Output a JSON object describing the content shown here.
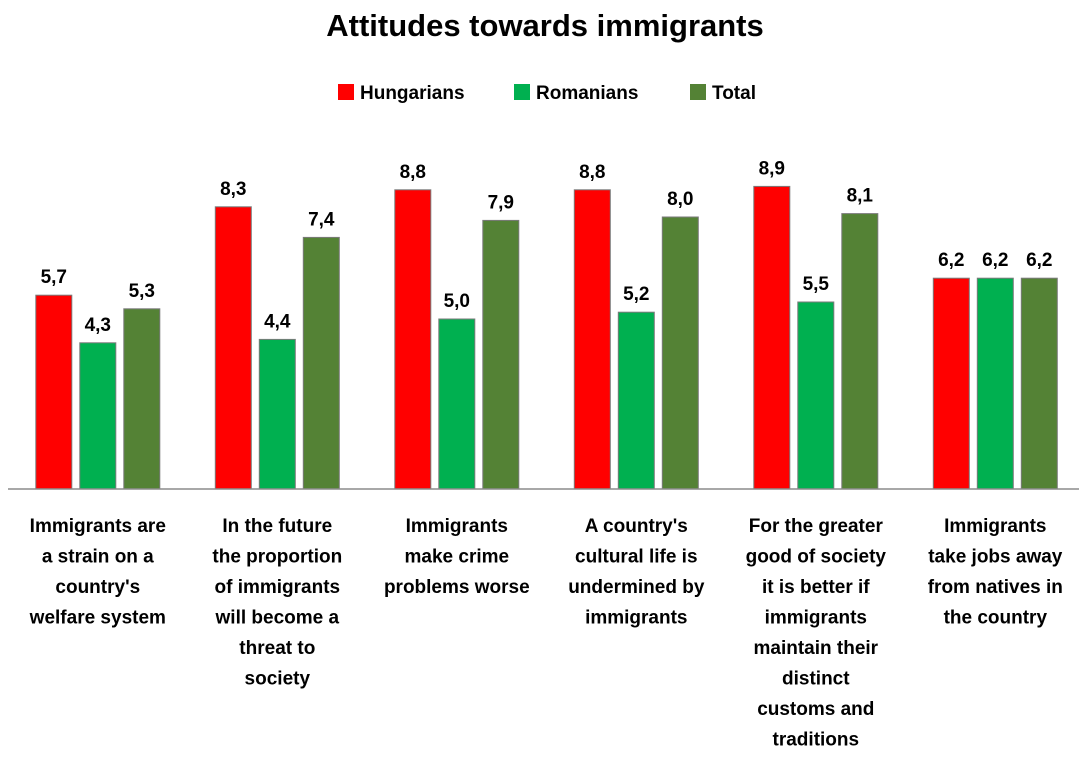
{
  "chart_data": {
    "type": "bar",
    "title": "Attitudes towards immigrants",
    "categories": [
      "Immigrants are a strain on a country's welfare system",
      "In the future the proportion of immigrants will become a threat to society",
      "Immigrants make crime problems worse",
      "A country's cultural life is undermined by immigrants",
      "For the greater good of society it is better if immigrants maintain their distinct customs and traditions",
      "Immigrants take jobs away from natives in the country"
    ],
    "category_lines": [
      [
        "Immigrants are",
        "a strain on a",
        "country's",
        "welfare system"
      ],
      [
        "In the future",
        "the proportion",
        "of immigrants",
        "will become a",
        "threat to",
        "society"
      ],
      [
        "Immigrants",
        "make crime",
        "problems worse"
      ],
      [
        "A country's",
        "cultural life is",
        "undermined by",
        "immigrants"
      ],
      [
        "For the greater",
        "good of society",
        "it is better if",
        "immigrants",
        "maintain their",
        "distinct",
        "customs and",
        "traditions"
      ],
      [
        "Immigrants",
        "take jobs away",
        "from natives in",
        "the country"
      ]
    ],
    "series": [
      {
        "name": "Hungarians",
        "color": "#ff0000",
        "values": [
          5.7,
          8.3,
          8.8,
          8.8,
          8.9,
          6.2
        ],
        "labels": [
          "5,7",
          "8,3",
          "8,8",
          "8,8",
          "8,9",
          "6,2"
        ]
      },
      {
        "name": "Romanians",
        "color": "#00b050",
        "values": [
          4.3,
          4.4,
          5.0,
          5.2,
          5.5,
          6.2
        ],
        "labels": [
          "4,3",
          "4,4",
          "5,0",
          "5,2",
          "5,5",
          "6,2"
        ]
      },
      {
        "name": "Total",
        "color": "#548235",
        "values": [
          5.3,
          7.4,
          7.9,
          8.0,
          8.1,
          6.2
        ],
        "labels": [
          "5,3",
          "7,4",
          "7,9",
          "8,0",
          "8,1",
          "6,2"
        ]
      }
    ],
    "ylim": [
      0,
      10
    ],
    "grid": false,
    "legend_position": "top-center"
  }
}
